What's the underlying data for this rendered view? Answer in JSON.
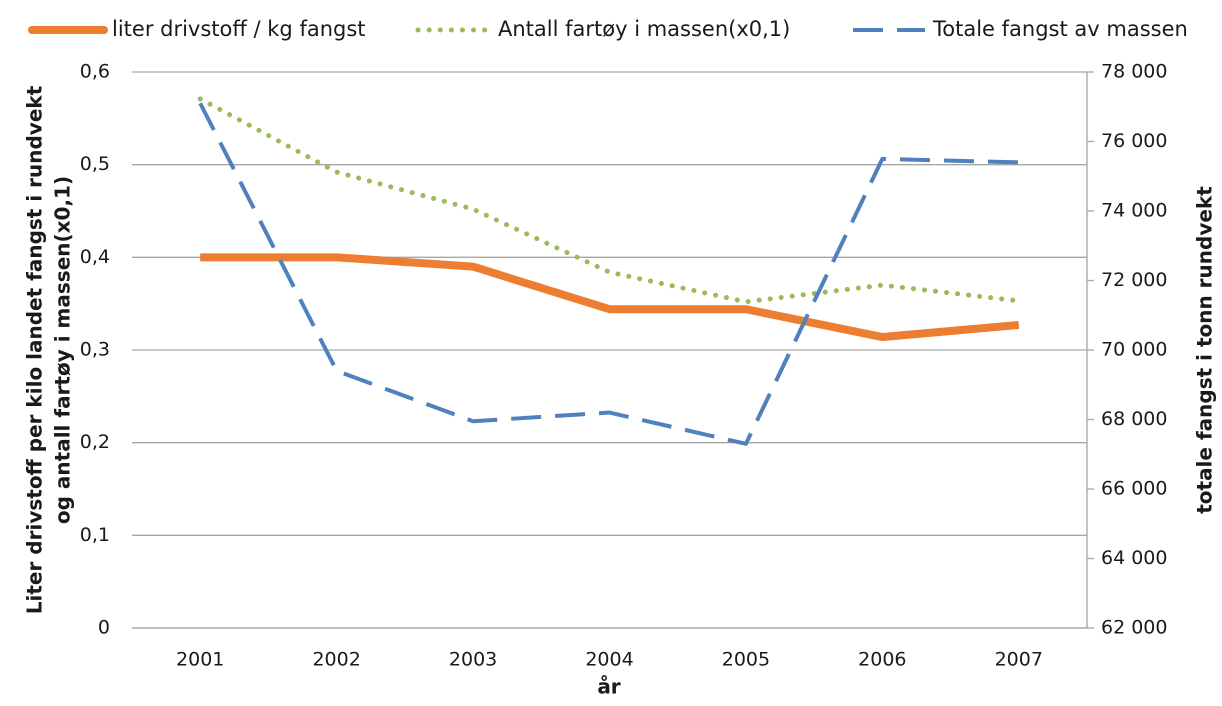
{
  "chart_data": {
    "type": "line",
    "categories": [
      "2001",
      "2002",
      "2003",
      "2004",
      "2005",
      "2006",
      "2007"
    ],
    "series": [
      {
        "name": "liter drivstoff / kg fangst",
        "color": "#ed7d31",
        "line_style": "solid",
        "values": [
          0.4,
          0.4,
          0.39,
          0.344,
          0.344,
          0.314,
          0.327
        ]
      },
      {
        "name": "Antall fartøy i massen(x0,1)",
        "color": "#9bbb59",
        "line_style": "dotted",
        "values": [
          0.571,
          0.492,
          0.452,
          0.384,
          0.352,
          0.37,
          0.353
        ]
      },
      {
        "name": "Totale fangst av massen",
        "color": "#4f81bd",
        "line_style": "dashed",
        "axis": "y2",
        "values": [
          77100,
          69400,
          67950,
          68200,
          67300,
          75500,
          75400
        ]
      }
    ],
    "xlabel": "år",
    "ylabel": [
      "Liter drivstoff per kilo landet fangst i rundvekt",
      "og antall fartøy i massen(x0,1)"
    ],
    "y2label": "totale fangst i tonn rundvekt",
    "ylim": [
      0,
      0.6
    ],
    "yticks": [
      0,
      {
        "value": 0.1,
        "label": "0,1"
      },
      {
        "value": 0.2,
        "label": "0,2"
      },
      {
        "value": 0.3,
        "label": "0,3"
      },
      {
        "value": 0.4,
        "label": "0,4"
      },
      {
        "value": 0.5,
        "label": "0,5"
      },
      {
        "value": 0.6,
        "label": "0,6"
      }
    ],
    "y2lim": [
      62000,
      78000
    ],
    "y2ticks": [
      {
        "value": 62000,
        "label": "62 000"
      },
      {
        "value": 64000,
        "label": "64 000"
      },
      {
        "value": 66000,
        "label": "66 000"
      },
      {
        "value": 68000,
        "label": "68 000"
      },
      {
        "value": 70000,
        "label": "70 000"
      },
      {
        "value": 72000,
        "label": "72 000"
      },
      {
        "value": 74000,
        "label": "74 000"
      },
      {
        "value": 76000,
        "label": "76 000"
      },
      {
        "value": 78000,
        "label": "78 000"
      }
    ],
    "grid": true,
    "legend": "top"
  }
}
